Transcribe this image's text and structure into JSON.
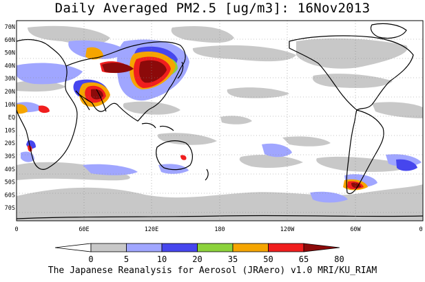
{
  "title": "Daily Averaged PM2.5 [ug/m3]: 16Nov2013",
  "footer": "The Japanese Reanalysis for Aerosol (JRAero) v1.0 MRI/KU_RIAM",
  "map": {
    "lat_labels": [
      "70N",
      "60N",
      "50N",
      "40N",
      "30N",
      "20N",
      "10N",
      "EQ",
      "10S",
      "20S",
      "30S",
      "40S",
      "50S",
      "60S",
      "70S"
    ],
    "lon_labels": [
      "0",
      "60E",
      "120E",
      "180",
      "120W",
      "60W",
      "0"
    ],
    "grid": "dotted"
  },
  "legend": {
    "labels": [
      "0",
      "5",
      "10",
      "20",
      "35",
      "50",
      "65",
      "80"
    ],
    "colors": [
      "#ffffff",
      "#c8c8c8",
      "#a0a6ff",
      "#4646ee",
      "#8cd23c",
      "#f5a500",
      "#f01e1e",
      "#8c0a0a"
    ]
  },
  "colors": {
    "land_outline": "#000000",
    "ocean": "#ffffff"
  }
}
